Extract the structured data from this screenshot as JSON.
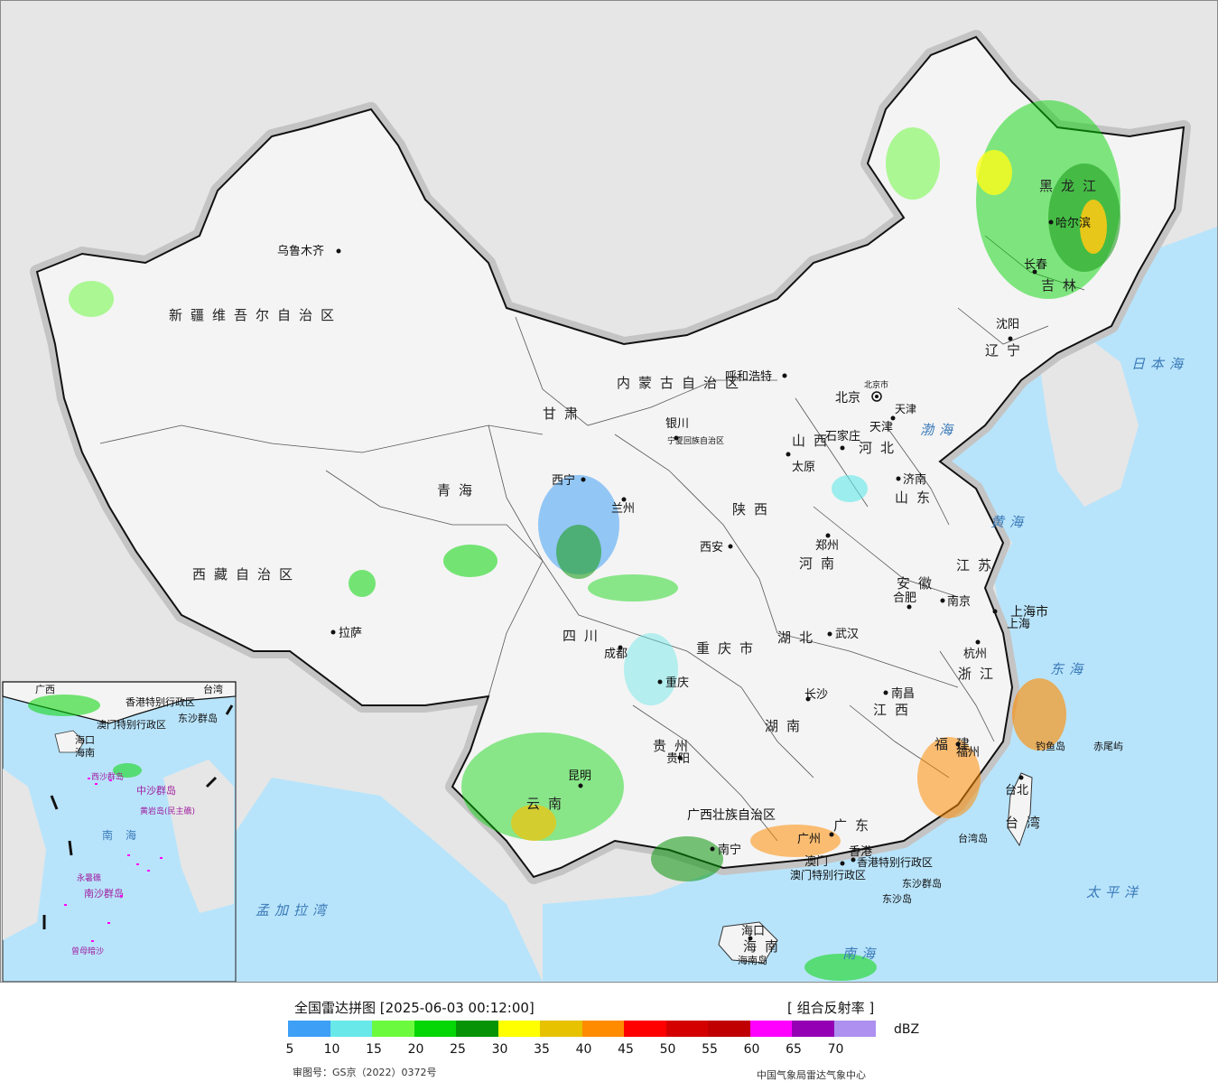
{
  "map": {
    "provinces": [
      "新疆维吾尔自治区",
      "西藏自治区",
      "青海",
      "甘肃",
      "内蒙古自治区",
      "黑龙江",
      "吉林",
      "辽宁",
      "河北",
      "山西",
      "陕西",
      "四川",
      "重庆市",
      "云南",
      "贵州",
      "广西壮族自治区",
      "广东",
      "湖南",
      "湖北",
      "河南",
      "山东",
      "江苏",
      "安徽",
      "江西",
      "福建",
      "浙江",
      "上海市",
      "海南",
      "台湾",
      "宁夏回族自治区",
      "北京市",
      "天津",
      "香港特别行政区",
      "澳门特别行政区"
    ],
    "cities": [
      "乌鲁木齐",
      "拉萨",
      "西宁",
      "兰州",
      "银川",
      "呼和浩特",
      "北京",
      "天津",
      "石家庄",
      "太原",
      "济南",
      "郑州",
      "西安",
      "成都",
      "重庆",
      "武汉",
      "合肥",
      "南京",
      "上海",
      "杭州",
      "长沙",
      "南昌",
      "贵阳",
      "昆明",
      "南宁",
      "福州",
      "台北",
      "广州",
      "香港",
      "澳门",
      "海口",
      "沈阳",
      "长春",
      "哈尔滨"
    ],
    "seas": [
      "日本海",
      "渤海",
      "黄海",
      "东海",
      "南海",
      "太平洋",
      "孟加拉湾"
    ],
    "islands": [
      "钓鱼岛",
      "赤尾屿",
      "东沙群岛",
      "东沙岛",
      "海南岛",
      "台湾岛"
    ],
    "inset": {
      "labels": [
        "广西",
        "香港特别行政区",
        "澳门特别行政区",
        "台湾",
        "海口",
        "海南",
        "东沙群岛",
        "中沙群岛",
        "黄岩岛(民主礁)",
        "南海",
        "永暑礁",
        "南沙群岛",
        "曾母暗沙",
        "西沙群岛"
      ]
    }
  },
  "legend": {
    "title": "全国雷达拼图 [2025-06-03 00:12:00]",
    "product": "[ 组合反射率 ]",
    "unit": "dBZ",
    "colors": [
      "#3d9ff5",
      "#68e8e8",
      "#6cfa3f",
      "#05d605",
      "#069406",
      "#ffff00",
      "#e6c200",
      "#ff8c00",
      "#ff0000",
      "#d40000",
      "#c00000",
      "#ff00ff",
      "#9400b4",
      "#ad90f0"
    ],
    "ticks": [
      "5",
      "10",
      "15",
      "20",
      "25",
      "30",
      "35",
      "40",
      "45",
      "50",
      "55",
      "60",
      "65",
      "70"
    ],
    "license": "审图号：GS京（2022）0372号",
    "source": "中国气象局雷达气象中心"
  }
}
